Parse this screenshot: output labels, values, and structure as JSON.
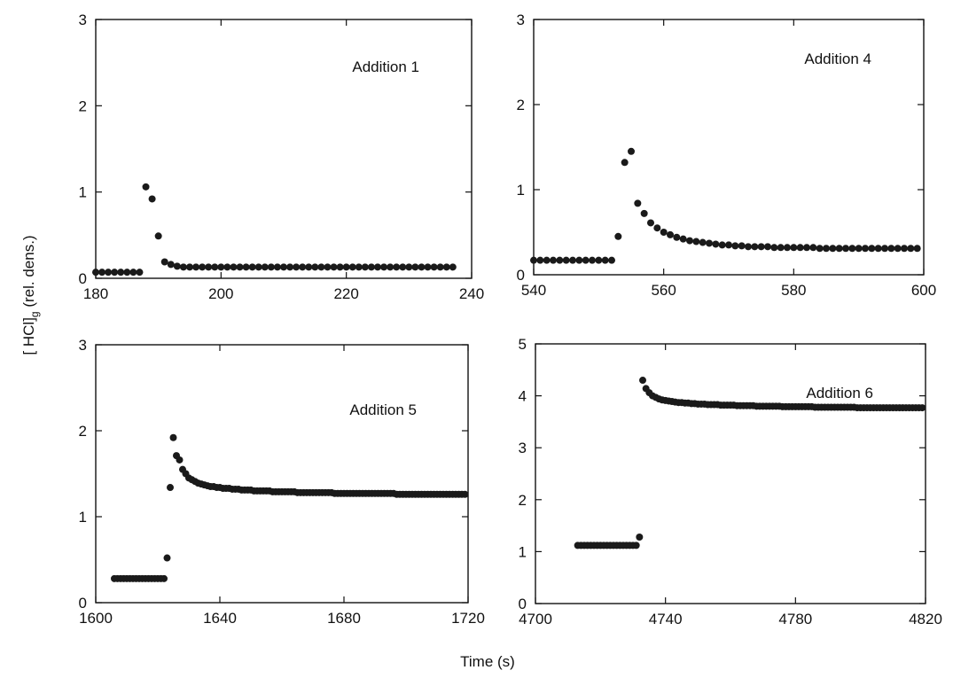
{
  "figure": {
    "ylabel": "[ HCl]g (rel. dens.)",
    "ylabel_main": "[ HCl]",
    "ylabel_sub": "g",
    "ylabel_rest": " (rel. dens.)",
    "xlabel": "Time (s)"
  },
  "chart_data": [
    {
      "type": "scatter",
      "label": "Addition 1",
      "xlim": [
        180,
        240
      ],
      "ylim": [
        0,
        3
      ],
      "xticks": [
        "180",
        "200",
        "220",
        "240"
      ],
      "yticks": [
        "0",
        "1",
        "2",
        "3"
      ],
      "series": [
        {
          "x": [
            180,
            181,
            182,
            183,
            184,
            185,
            186,
            187,
            188,
            189,
            190,
            191,
            192,
            193,
            194,
            195,
            196,
            197,
            198,
            199,
            200,
            201,
            202,
            203,
            204,
            205,
            206,
            207,
            208,
            209,
            210,
            211,
            212,
            213,
            214,
            215,
            216,
            217,
            218,
            219,
            220,
            221,
            222,
            223,
            224,
            225,
            226,
            227,
            228,
            229,
            230,
            231,
            232,
            233,
            234,
            235,
            236,
            237
          ],
          "y": [
            0.07,
            0.07,
            0.07,
            0.07,
            0.07,
            0.07,
            0.07,
            0.07,
            1.06,
            0.92,
            0.49,
            0.19,
            0.16,
            0.14,
            0.13,
            0.13,
            0.13,
            0.13,
            0.13,
            0.13,
            0.13,
            0.13,
            0.13,
            0.13,
            0.13,
            0.13,
            0.13,
            0.13,
            0.13,
            0.13,
            0.13,
            0.13,
            0.13,
            0.13,
            0.13,
            0.13,
            0.13,
            0.13,
            0.13,
            0.13,
            0.13,
            0.13,
            0.13,
            0.13,
            0.13,
            0.13,
            0.13,
            0.13,
            0.13,
            0.13,
            0.13,
            0.13,
            0.13,
            0.13,
            0.13,
            0.13,
            0.13,
            0.13
          ]
        }
      ]
    },
    {
      "type": "scatter",
      "label": "Addition 4",
      "xlim": [
        540,
        600
      ],
      "ylim": [
        0,
        3
      ],
      "xticks": [
        "540",
        "560",
        "580",
        "600"
      ],
      "yticks": [
        "0",
        "1",
        "2",
        "3"
      ],
      "series": [
        {
          "x": [
            540,
            541,
            542,
            543,
            544,
            545,
            546,
            547,
            548,
            549,
            550,
            551,
            552,
            553,
            554,
            555,
            556,
            557,
            558,
            559,
            560,
            561,
            562,
            563,
            564,
            565,
            566,
            567,
            568,
            569,
            570,
            571,
            572,
            573,
            574,
            575,
            576,
            577,
            578,
            579,
            580,
            581,
            582,
            583,
            584,
            585,
            586,
            587,
            588,
            589,
            590,
            591,
            592,
            593,
            594,
            595,
            596,
            597,
            598,
            599
          ],
          "y": [
            0.17,
            0.17,
            0.17,
            0.17,
            0.17,
            0.17,
            0.17,
            0.17,
            0.17,
            0.17,
            0.17,
            0.17,
            0.17,
            0.45,
            1.32,
            1.45,
            0.84,
            0.72,
            0.61,
            0.55,
            0.5,
            0.47,
            0.44,
            0.42,
            0.4,
            0.39,
            0.38,
            0.37,
            0.36,
            0.35,
            0.35,
            0.34,
            0.34,
            0.33,
            0.33,
            0.33,
            0.33,
            0.32,
            0.32,
            0.32,
            0.32,
            0.32,
            0.32,
            0.32,
            0.31,
            0.31,
            0.31,
            0.31,
            0.31,
            0.31,
            0.31,
            0.31,
            0.31,
            0.31,
            0.31,
            0.31,
            0.31,
            0.31,
            0.31,
            0.31
          ]
        }
      ]
    },
    {
      "type": "scatter",
      "label": "Addition 5",
      "xlim": [
        1600,
        1720
      ],
      "ylim": [
        0,
        3
      ],
      "xticks": [
        "1600",
        "1640",
        "1680",
        "1720"
      ],
      "yticks": [
        "0",
        "1",
        "2",
        "3"
      ],
      "series": [
        {
          "x": [
            1606,
            1607,
            1608,
            1609,
            1610,
            1611,
            1612,
            1613,
            1614,
            1615,
            1616,
            1617,
            1618,
            1619,
            1620,
            1621,
            1622,
            1623,
            1624,
            1625,
            1626,
            1627,
            1628,
            1629,
            1630,
            1631,
            1632,
            1633,
            1634,
            1635,
            1636,
            1637,
            1638,
            1639,
            1640,
            1641,
            1642,
            1643,
            1644,
            1645,
            1646,
            1647,
            1648,
            1649,
            1650,
            1651,
            1652,
            1653,
            1654,
            1655,
            1656,
            1657,
            1658,
            1659,
            1660,
            1661,
            1662,
            1663,
            1664,
            1665,
            1666,
            1667,
            1668,
            1669,
            1670,
            1671,
            1672,
            1673,
            1674,
            1675,
            1676,
            1677,
            1678,
            1679,
            1680,
            1681,
            1682,
            1683,
            1684,
            1685,
            1686,
            1687,
            1688,
            1689,
            1690,
            1691,
            1692,
            1693,
            1694,
            1695,
            1696,
            1697,
            1698,
            1699,
            1700,
            1701,
            1702,
            1703,
            1704,
            1705,
            1706,
            1707,
            1708,
            1709,
            1710,
            1711,
            1712,
            1713,
            1714,
            1715,
            1716,
            1717,
            1718,
            1719
          ],
          "y": [
            0.28,
            0.28,
            0.28,
            0.28,
            0.28,
            0.28,
            0.28,
            0.28,
            0.28,
            0.28,
            0.28,
            0.28,
            0.28,
            0.28,
            0.28,
            0.28,
            0.28,
            0.52,
            1.34,
            1.92,
            1.71,
            1.66,
            1.55,
            1.5,
            1.45,
            1.43,
            1.41,
            1.39,
            1.38,
            1.37,
            1.36,
            1.35,
            1.35,
            1.34,
            1.34,
            1.33,
            1.33,
            1.33,
            1.32,
            1.32,
            1.32,
            1.31,
            1.31,
            1.31,
            1.31,
            1.3,
            1.3,
            1.3,
            1.3,
            1.3,
            1.3,
            1.29,
            1.29,
            1.29,
            1.29,
            1.29,
            1.29,
            1.29,
            1.29,
            1.28,
            1.28,
            1.28,
            1.28,
            1.28,
            1.28,
            1.28,
            1.28,
            1.28,
            1.28,
            1.28,
            1.28,
            1.27,
            1.27,
            1.27,
            1.27,
            1.27,
            1.27,
            1.27,
            1.27,
            1.27,
            1.27,
            1.27,
            1.27,
            1.27,
            1.27,
            1.27,
            1.27,
            1.27,
            1.27,
            1.27,
            1.27,
            1.26,
            1.26,
            1.26,
            1.26,
            1.26,
            1.26,
            1.26,
            1.26,
            1.26,
            1.26,
            1.26,
            1.26,
            1.26,
            1.26,
            1.26,
            1.26,
            1.26,
            1.26,
            1.26,
            1.26,
            1.26,
            1.26,
            1.26
          ]
        }
      ]
    },
    {
      "type": "scatter",
      "label": "Addition 6",
      "xlim": [
        4700,
        4820
      ],
      "ylim": [
        0,
        5
      ],
      "xticks": [
        "4700",
        "4740",
        "4780",
        "4820"
      ],
      "yticks": [
        "0",
        "1",
        "2",
        "3",
        "4",
        "5"
      ],
      "series": [
        {
          "x": [
            4713,
            4714,
            4715,
            4716,
            4717,
            4718,
            4719,
            4720,
            4721,
            4722,
            4723,
            4724,
            4725,
            4726,
            4727,
            4728,
            4729,
            4730,
            4731,
            4732,
            4733,
            4734,
            4735,
            4736,
            4737,
            4738,
            4739,
            4740,
            4741,
            4742,
            4743,
            4744,
            4745,
            4746,
            4747,
            4748,
            4749,
            4750,
            4751,
            4752,
            4753,
            4754,
            4755,
            4756,
            4757,
            4758,
            4759,
            4760,
            4761,
            4762,
            4763,
            4764,
            4765,
            4766,
            4767,
            4768,
            4769,
            4770,
            4771,
            4772,
            4773,
            4774,
            4775,
            4776,
            4777,
            4778,
            4779,
            4780,
            4781,
            4782,
            4783,
            4784,
            4785,
            4786,
            4787,
            4788,
            4789,
            4790,
            4791,
            4792,
            4793,
            4794,
            4795,
            4796,
            4797,
            4798,
            4799,
            4800,
            4801,
            4802,
            4803,
            4804,
            4805,
            4806,
            4807,
            4808,
            4809,
            4810,
            4811,
            4812,
            4813,
            4814,
            4815,
            4816,
            4817,
            4818,
            4819
          ],
          "y": [
            1.12,
            1.12,
            1.12,
            1.12,
            1.12,
            1.12,
            1.12,
            1.12,
            1.12,
            1.12,
            1.12,
            1.12,
            1.12,
            1.12,
            1.12,
            1.12,
            1.12,
            1.12,
            1.12,
            1.28,
            4.3,
            4.14,
            4.06,
            4.0,
            3.97,
            3.94,
            3.92,
            3.91,
            3.9,
            3.89,
            3.88,
            3.87,
            3.87,
            3.86,
            3.86,
            3.85,
            3.85,
            3.84,
            3.84,
            3.84,
            3.83,
            3.83,
            3.83,
            3.83,
            3.82,
            3.82,
            3.82,
            3.82,
            3.82,
            3.81,
            3.81,
            3.81,
            3.81,
            3.81,
            3.81,
            3.8,
            3.8,
            3.8,
            3.8,
            3.8,
            3.8,
            3.8,
            3.8,
            3.79,
            3.79,
            3.79,
            3.79,
            3.79,
            3.79,
            3.79,
            3.79,
            3.79,
            3.79,
            3.78,
            3.78,
            3.78,
            3.78,
            3.78,
            3.78,
            3.78,
            3.78,
            3.78,
            3.78,
            3.78,
            3.78,
            3.78,
            3.77,
            3.77,
            3.77,
            3.77,
            3.77,
            3.77,
            3.77,
            3.77,
            3.77,
            3.77,
            3.77,
            3.77,
            3.77,
            3.77,
            3.77,
            3.77,
            3.77,
            3.77,
            3.77,
            3.77,
            3.77
          ]
        }
      ]
    }
  ]
}
